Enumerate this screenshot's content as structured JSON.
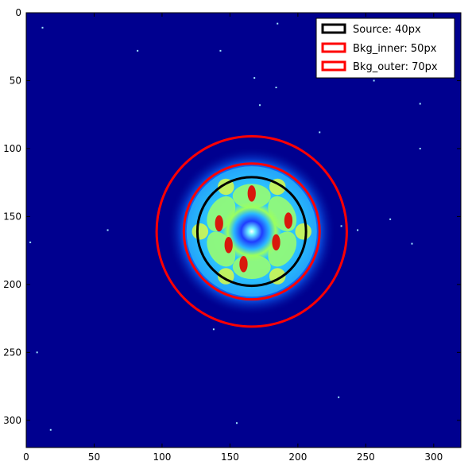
{
  "image": {
    "colormap": "jet",
    "background_color": "#00008f",
    "xlim": [
      0,
      320
    ],
    "ylim": [
      320,
      0
    ]
  },
  "axes": {
    "x_ticks": [
      0,
      50,
      100,
      150,
      200,
      250,
      300
    ],
    "y_ticks": [
      0,
      50,
      100,
      150,
      200,
      250,
      300
    ]
  },
  "apertures": {
    "center": [
      166,
      161
    ],
    "source": {
      "radius": 40,
      "color": "#000000",
      "label": "Source: 40px"
    },
    "bkg_inner": {
      "radius": 50,
      "color": "#ff0000",
      "label": "Bkg_inner: 50px"
    },
    "bkg_outer": {
      "radius": 70,
      "color": "#ff0000",
      "label": "Bkg_outer: 70px"
    }
  },
  "legend": {
    "location": "upper-right",
    "entries": [
      {
        "label": "Source: 40px",
        "color": "#000000"
      },
      {
        "label": "Bkg_inner: 50px",
        "color": "#ff0000"
      },
      {
        "label": "Bkg_outer: 70px",
        "color": "#ff0000"
      }
    ]
  }
}
